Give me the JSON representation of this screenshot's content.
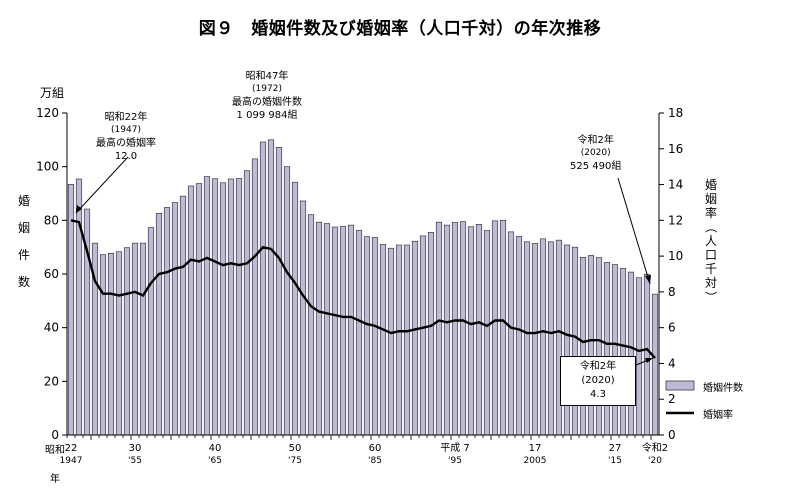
{
  "title": "図９　婚姻件数及び婚姻率（人口千対）の年次推移",
  "left_axis": {
    "unit": "万組",
    "label_chars": [
      "婚",
      "姻",
      "件",
      "数"
    ]
  },
  "right_axis": {
    "label_chars": [
      "婚",
      "姻",
      "率",
      "（",
      "人",
      "口",
      "千",
      "対",
      "）"
    ]
  },
  "x_axis": {
    "era_label": "昭和",
    "year_label": "年"
  },
  "annotations": {
    "s22": {
      "line1": "昭和22年",
      "line2": "(1947)",
      "line3": "最高の婚姻率",
      "line4": "12.0"
    },
    "s47": {
      "line1": "昭和47年",
      "line2": "(1972)",
      "line3": "最高の婚姻件数",
      "line4": "1 099 984組"
    },
    "r2count": {
      "line1": "令和2年",
      "line2": "(2020)",
      "line3": "525 490組"
    },
    "r2rate": {
      "line1": "令和2年",
      "line2": "(2020)",
      "line3": "4.3"
    }
  },
  "legend": {
    "bars": "婚姻件数",
    "line": "婚姻率"
  },
  "colors": {
    "bar_fill": "#bdbbd6",
    "bar_stroke": "#3a3a4a",
    "line": "#000000"
  },
  "chart_data": {
    "type": "bar",
    "title": "婚姻件数及び婚姻率（人口千対）の年次推移",
    "x_start_year": 1947,
    "x_end_year": 2020,
    "years": [
      1947,
      1948,
      1949,
      1950,
      1951,
      1952,
      1953,
      1954,
      1955,
      1956,
      1957,
      1958,
      1959,
      1960,
      1961,
      1962,
      1963,
      1964,
      1965,
      1966,
      1967,
      1968,
      1969,
      1970,
      1971,
      1972,
      1973,
      1974,
      1975,
      1976,
      1977,
      1978,
      1979,
      1980,
      1981,
      1982,
      1983,
      1984,
      1985,
      1986,
      1987,
      1988,
      1989,
      1990,
      1991,
      1992,
      1993,
      1994,
      1995,
      1996,
      1997,
      1998,
      1999,
      2000,
      2001,
      2002,
      2003,
      2004,
      2005,
      2006,
      2007,
      2008,
      2009,
      2010,
      2011,
      2012,
      2013,
      2014,
      2015,
      2016,
      2017,
      2018,
      2019,
      2020
    ],
    "series": [
      {
        "name": "婚姻件数",
        "axis": "left",
        "unit": "万組",
        "values": [
          93.4,
          95.4,
          84.2,
          71.5,
          67.2,
          67.7,
          68.3,
          69.8,
          71.5,
          71.5,
          77.3,
          82.6,
          84.8,
          86.6,
          89.0,
          92.8,
          93.7,
          96.3,
          95.5,
          94.0,
          95.4,
          95.6,
          98.5,
          102.9,
          109.2,
          110.0,
          107.2,
          100.0,
          94.2,
          87.2,
          82.1,
          79.3,
          78.8,
          77.5,
          77.7,
          78.2,
          76.3,
          73.9,
          73.6,
          71.0,
          69.6,
          70.8,
          70.8,
          72.2,
          74.2,
          75.5,
          79.3,
          78.2,
          79.2,
          79.5,
          77.6,
          78.5,
          76.2,
          79.8,
          80.0,
          75.7,
          74.0,
          72.0,
          71.4,
          73.1,
          72.0,
          72.6,
          70.8,
          70.0,
          66.2,
          66.9,
          66.1,
          64.3,
          63.5,
          62.1,
          60.7,
          58.6,
          59.9,
          52.5
        ]
      },
      {
        "name": "婚姻率",
        "axis": "right",
        "unit": "人口千対",
        "values": [
          12.0,
          11.9,
          10.3,
          8.6,
          7.9,
          7.9,
          7.8,
          7.9,
          8.0,
          7.8,
          8.5,
          9.0,
          9.1,
          9.3,
          9.4,
          9.8,
          9.7,
          9.9,
          9.7,
          9.5,
          9.6,
          9.5,
          9.6,
          10.0,
          10.5,
          10.4,
          9.9,
          9.1,
          8.5,
          7.8,
          7.2,
          6.9,
          6.8,
          6.7,
          6.6,
          6.6,
          6.4,
          6.2,
          6.1,
          5.9,
          5.7,
          5.8,
          5.8,
          5.9,
          6.0,
          6.1,
          6.4,
          6.3,
          6.4,
          6.4,
          6.2,
          6.3,
          6.1,
          6.4,
          6.4,
          6.0,
          5.9,
          5.7,
          5.7,
          5.8,
          5.7,
          5.8,
          5.6,
          5.5,
          5.2,
          5.3,
          5.3,
          5.1,
          5.1,
          5.0,
          4.9,
          4.7,
          4.8,
          4.3
        ]
      }
    ],
    "ylim_left": [
      0,
      120
    ],
    "ylim_right": [
      0,
      18
    ],
    "yticks_left": [
      "0",
      "20",
      "40",
      "60",
      "80",
      "100",
      "120"
    ],
    "yticks_right": [
      "0",
      "2",
      "4",
      "6",
      "8",
      "10",
      "12",
      "14",
      "16",
      "18"
    ],
    "xticks": [
      {
        "year": 1947,
        "top": "22",
        "bottom": "1947"
      },
      {
        "year": 1955,
        "top": "30",
        "bottom": "'55"
      },
      {
        "year": 1965,
        "top": "40",
        "bottom": "'65"
      },
      {
        "year": 1975,
        "top": "50",
        "bottom": "'75"
      },
      {
        "year": 1985,
        "top": "60",
        "bottom": "'85"
      },
      {
        "year": 1995,
        "top": "平成 7",
        "bottom": "'95"
      },
      {
        "year": 2005,
        "top": "17",
        "bottom": "2005"
      },
      {
        "year": 2015,
        "top": "27",
        "bottom": "'15"
      },
      {
        "year": 2020,
        "top": "令和2",
        "bottom": "'20"
      }
    ],
    "legend_position": "bottom-right",
    "grid": false
  }
}
